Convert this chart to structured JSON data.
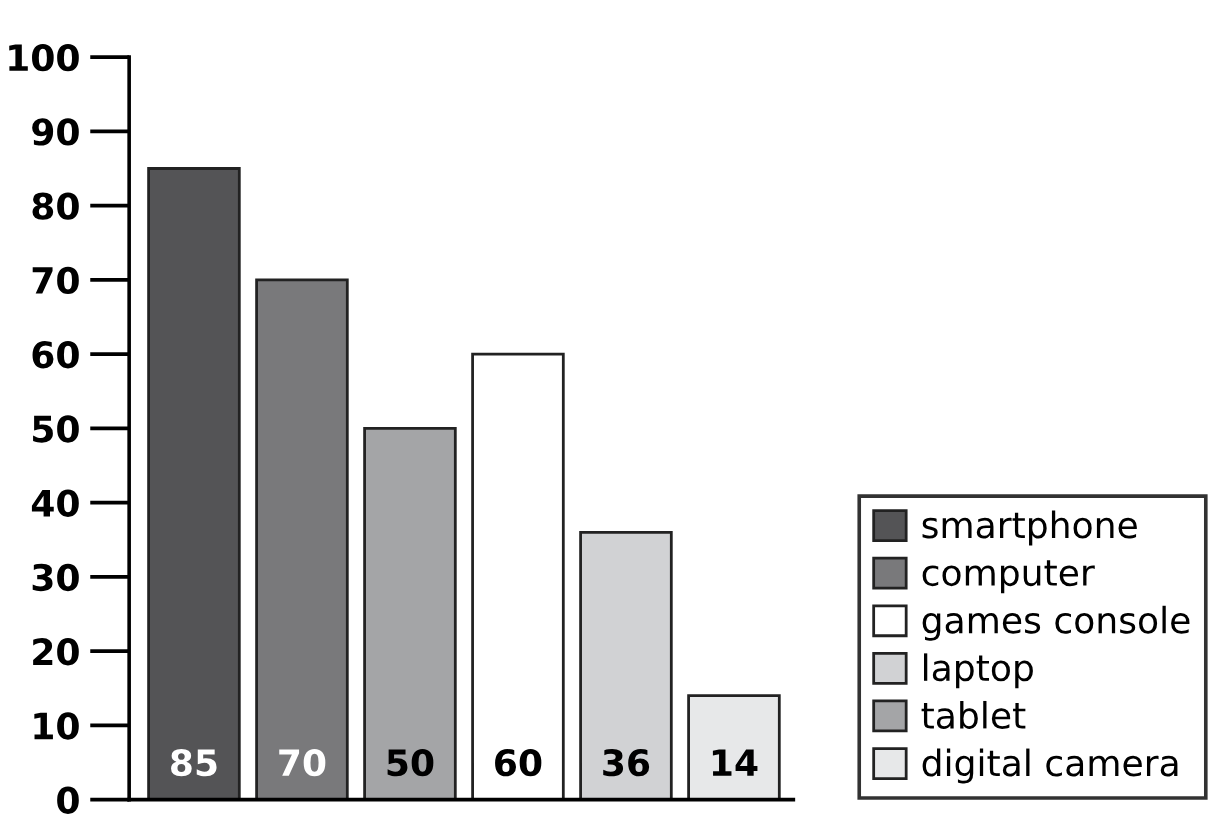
{
  "chart_data": {
    "type": "bar",
    "categories": [
      null,
      null,
      null,
      null,
      null,
      null
    ],
    "series": [
      {
        "name": "smartphone",
        "color": "#545456",
        "values": [
          85,
          null,
          null,
          null,
          null,
          null
        ]
      },
      {
        "name": "computer",
        "color": "#79797b",
        "values": [
          null,
          70,
          null,
          null,
          null,
          null
        ]
      },
      {
        "name": "games console",
        "color": "#ffffff",
        "values": [
          null,
          null,
          null,
          60,
          null,
          null
        ]
      },
      {
        "name": "laptop",
        "color": "#d1d2d4",
        "values": [
          null,
          null,
          null,
          null,
          36,
          null
        ]
      },
      {
        "name": "tablet",
        "color": "#a4a5a7",
        "values": [
          null,
          null,
          50,
          null,
          null,
          null
        ]
      },
      {
        "name": "digital camera",
        "color": "#e7e8e9",
        "values": [
          null,
          null,
          null,
          null,
          null,
          14
        ]
      }
    ],
    "ylim": [
      0,
      100
    ],
    "yticks": [
      0,
      10,
      20,
      30,
      40,
      50,
      60,
      70,
      80,
      90,
      100
    ],
    "data_labels": true,
    "legend": "bottom right",
    "grid": false
  }
}
